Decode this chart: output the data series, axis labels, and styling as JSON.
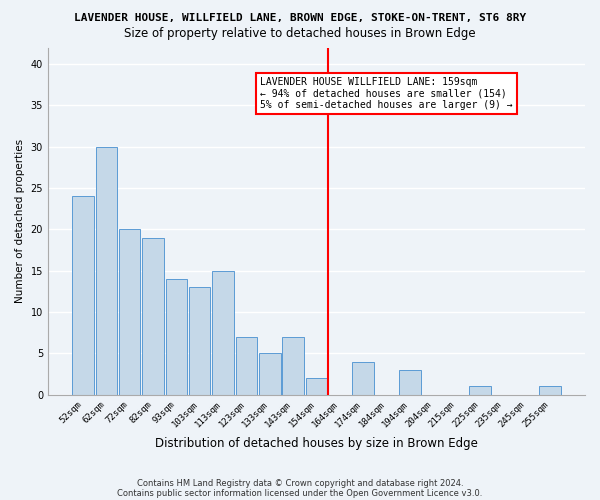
{
  "title1": "LAVENDER HOUSE, WILLFIELD LANE, BROWN EDGE, STOKE-ON-TRENT, ST6 8RY",
  "title2": "Size of property relative to detached houses in Brown Edge",
  "xlabel": "Distribution of detached houses by size in Brown Edge",
  "ylabel": "Number of detached properties",
  "categories": [
    "52sqm",
    "62sqm",
    "72sqm",
    "82sqm",
    "93sqm",
    "103sqm",
    "113sqm",
    "123sqm",
    "133sqm",
    "143sqm",
    "154sqm",
    "164sqm",
    "174sqm",
    "184sqm",
    "194sqm",
    "204sqm",
    "215sqm",
    "225sqm",
    "235sqm",
    "245sqm",
    "255sqm"
  ],
  "values": [
    24,
    30,
    20,
    19,
    14,
    13,
    15,
    7,
    5,
    7,
    2,
    0,
    4,
    0,
    3,
    0,
    0,
    1,
    0,
    0,
    1
  ],
  "bar_color": "#c5d8e8",
  "bar_edge_color": "#5b9bd5",
  "vline_x": 10.5,
  "annotation_line1": "LAVENDER HOUSE WILLFIELD LANE: 159sqm",
  "annotation_line2": "← 94% of detached houses are smaller (154)",
  "annotation_line3": "5% of semi-detached houses are larger (9) →",
  "ylim": [
    0,
    42
  ],
  "yticks": [
    0,
    5,
    10,
    15,
    20,
    25,
    30,
    35,
    40
  ],
  "footnote1": "Contains HM Land Registry data © Crown copyright and database right 2024.",
  "footnote2": "Contains public sector information licensed under the Open Government Licence v3.0.",
  "bg_color": "#eef3f8",
  "grid_color": "#ffffff",
  "title1_fontsize": 8.0,
  "title2_fontsize": 8.5,
  "ylabel_fontsize": 7.5,
  "xlabel_fontsize": 8.5,
  "tick_fontsize": 6.5,
  "annot_fontsize": 7.0,
  "footnote_fontsize": 6.0
}
